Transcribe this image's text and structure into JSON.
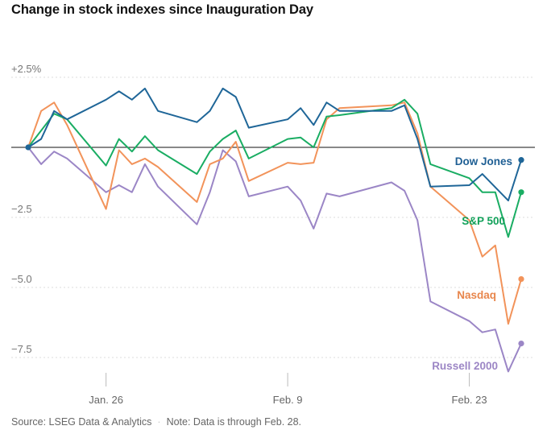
{
  "chart_data": {
    "type": "line",
    "title": "Change in stock indexes since Inauguration Day",
    "xlabel": "",
    "ylabel": "",
    "ylim": [
      -8.7,
      3.0
    ],
    "y_ticks": [
      {
        "value": 2.5,
        "label": "+2.5%"
      },
      {
        "value": 0,
        "label": ""
      },
      {
        "value": -2.5,
        "label": "−2.5"
      },
      {
        "value": -5,
        "label": "−5.0"
      },
      {
        "value": -7.5,
        "label": "−7.5"
      }
    ],
    "x_ticks": [
      {
        "day": 6,
        "label": "Jan. 26"
      },
      {
        "day": 20,
        "label": "Feb. 9"
      },
      {
        "day": 34,
        "label": "Feb. 23"
      }
    ],
    "xlim": [
      -0.15,
      39.5
    ],
    "x_unit": "days since Jan. 20",
    "series": [
      {
        "name": "Dow Jones",
        "color": "#1f6698",
        "label_color": "#1f5f94",
        "x": [
          0,
          1,
          2,
          3,
          6,
          7,
          8,
          9,
          10,
          13,
          14,
          15,
          16,
          17,
          20,
          21,
          22,
          23,
          24,
          28,
          29,
          30,
          31,
          34,
          35,
          37,
          38
        ],
        "y": [
          0,
          0.3,
          1.3,
          1.0,
          1.7,
          2.0,
          1.7,
          2.1,
          1.3,
          0.9,
          1.3,
          2.1,
          1.8,
          0.7,
          1.0,
          1.4,
          0.8,
          1.6,
          1.3,
          1.3,
          1.5,
          0.3,
          -1.4,
          -1.35,
          -0.95,
          -1.9,
          -0.45
        ]
      },
      {
        "name": "S&P 500",
        "color": "#1aad63",
        "label_color": "#12a15a",
        "x": [
          0,
          1,
          2,
          3,
          6,
          7,
          8,
          9,
          10,
          13,
          14,
          15,
          16,
          17,
          20,
          21,
          22,
          23,
          24,
          28,
          29,
          30,
          31,
          34,
          35,
          36,
          37,
          38
        ],
        "y": [
          0,
          0.6,
          1.2,
          1.0,
          -0.65,
          0.3,
          -0.15,
          0.4,
          -0.1,
          -0.95,
          -0.15,
          0.3,
          0.6,
          -0.4,
          0.3,
          0.35,
          0.0,
          1.1,
          1.15,
          1.4,
          1.7,
          1.2,
          -0.6,
          -1.1,
          -1.6,
          -1.6,
          -3.2,
          -1.6
        ]
      },
      {
        "name": "Nasdaq",
        "color": "#f2935a",
        "label_color": "#e8864c",
        "x": [
          0,
          1,
          2,
          3,
          6,
          7,
          8,
          9,
          10,
          13,
          14,
          15,
          16,
          17,
          20,
          21,
          22,
          23,
          24,
          28,
          29,
          30,
          31,
          34,
          35,
          36,
          37,
          38
        ],
        "y": [
          0,
          1.3,
          1.6,
          0.8,
          -2.2,
          -0.1,
          -0.6,
          -0.4,
          -0.7,
          -1.95,
          -0.6,
          -0.4,
          0.2,
          -1.2,
          -0.55,
          -0.6,
          -0.55,
          1.0,
          1.4,
          1.5,
          1.6,
          0.5,
          -1.4,
          -2.6,
          -3.9,
          -3.5,
          -6.3,
          -4.7
        ]
      },
      {
        "name": "Russell 2000",
        "color": "#9b86c6",
        "label_color": "#9c86c5",
        "x": [
          0,
          1,
          2,
          3,
          6,
          7,
          8,
          9,
          10,
          13,
          14,
          15,
          16,
          17,
          20,
          21,
          22,
          23,
          24,
          28,
          29,
          30,
          31,
          34,
          35,
          36,
          37,
          38
        ],
        "y": [
          0,
          -0.6,
          -0.15,
          -0.4,
          -1.6,
          -1.35,
          -1.6,
          -0.6,
          -1.4,
          -2.75,
          -1.6,
          -0.1,
          -0.5,
          -1.75,
          -1.4,
          -1.9,
          -2.9,
          -1.65,
          -1.75,
          -1.25,
          -1.55,
          -2.6,
          -5.5,
          -6.2,
          -6.6,
          -6.5,
          -8.0,
          -7.0
        ]
      }
    ]
  },
  "source": "Source: LSEG Data & Analytics",
  "note": "Note: Data is through Feb. 28."
}
